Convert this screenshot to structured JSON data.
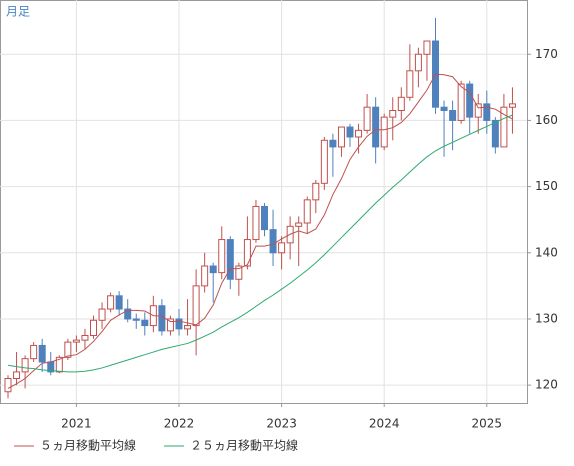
{
  "corner_label": "月足",
  "chart_data": {
    "type": "candlestick",
    "categories": [
      null,
      null,
      null,
      null,
      null,
      null,
      null,
      null,
      "2021",
      null,
      null,
      null,
      null,
      null,
      null,
      null,
      null,
      null,
      null,
      null,
      "2022",
      null,
      null,
      null,
      null,
      null,
      null,
      null,
      null,
      null,
      null,
      null,
      "2023",
      null,
      null,
      null,
      null,
      null,
      null,
      null,
      null,
      null,
      null,
      null,
      "2024",
      null,
      null,
      null,
      null,
      null,
      null,
      null,
      null,
      null,
      null,
      null,
      "2025",
      null,
      null,
      null
    ],
    "open": [
      119.0,
      121.0,
      122.0,
      124.0,
      126.0,
      123.5,
      122.0,
      124.2,
      126.5,
      126.8,
      127.5,
      129.8,
      131.5,
      133.5,
      131.5,
      130.0,
      129.8,
      129.0,
      132.0,
      128.2,
      130.0,
      128.5,
      129.0,
      135.0,
      138.0,
      137.0,
      142.0,
      136.0,
      138.0,
      142.0,
      147.0,
      143.5,
      140.0,
      141.5,
      144.0,
      144.5,
      148.0,
      150.5,
      157.0,
      156.0,
      159.0,
      157.5,
      158.5,
      162.0,
      156.0,
      160.5,
      161.5,
      163.5,
      167.5,
      170.0,
      172.0,
      162.0,
      161.5,
      160.0,
      165.5,
      160.5,
      162.5,
      160.0,
      156.0,
      162.0
    ],
    "high": [
      121.5,
      125.0,
      124.5,
      126.5,
      127.0,
      125.0,
      124.5,
      127.0,
      127.5,
      128.5,
      130.5,
      132.5,
      134.0,
      134.2,
      133.0,
      130.8,
      131.0,
      133.5,
      133.0,
      130.5,
      131.5,
      133.0,
      137.5,
      140.0,
      138.5,
      144.0,
      142.5,
      138.5,
      145.5,
      148.0,
      147.5,
      146.5,
      142.5,
      145.5,
      145.5,
      148.5,
      151.0,
      157.5,
      158.0,
      159.0,
      159.5,
      159.5,
      164.0,
      163.5,
      161.0,
      163.5,
      165.0,
      171.5,
      171.0,
      172.0,
      175.5,
      163.0,
      163.0,
      166.0,
      166.0,
      164.0,
      164.5,
      160.5,
      164.0,
      165.0
    ],
    "low": [
      118.0,
      120.0,
      119.5,
      123.5,
      122.0,
      121.5,
      121.8,
      123.8,
      125.0,
      125.5,
      127.0,
      128.5,
      131.0,
      130.5,
      129.5,
      128.5,
      127.5,
      128.0,
      127.5,
      127.5,
      127.5,
      127.5,
      124.5,
      134.0,
      132.5,
      136.0,
      134.5,
      133.5,
      137.5,
      141.5,
      142.5,
      138.0,
      137.5,
      139.0,
      138.0,
      143.0,
      146.0,
      149.5,
      151.5,
      154.5,
      156.0,
      155.0,
      158.0,
      153.5,
      155.5,
      157.0,
      160.0,
      163.0,
      165.0,
      166.0,
      161.0,
      154.5,
      155.5,
      159.5,
      158.0,
      158.0,
      158.0,
      155.0,
      156.0,
      158.0
    ],
    "close": [
      121.0,
      122.0,
      124.0,
      126.0,
      123.5,
      122.0,
      124.2,
      126.5,
      126.8,
      127.5,
      129.8,
      131.5,
      133.5,
      131.5,
      130.0,
      129.8,
      129.0,
      132.0,
      128.2,
      130.0,
      128.5,
      129.0,
      135.0,
      138.0,
      137.0,
      142.0,
      136.0,
      138.0,
      142.0,
      147.0,
      143.5,
      140.0,
      141.5,
      144.0,
      144.5,
      148.0,
      150.5,
      157.0,
      156.0,
      159.0,
      157.5,
      158.5,
      162.0,
      156.0,
      160.5,
      161.5,
      163.5,
      167.5,
      170.0,
      172.0,
      162.0,
      161.5,
      160.0,
      165.5,
      160.5,
      162.5,
      160.0,
      156.0,
      162.0,
      162.5
    ],
    "up_color": "#c0504d",
    "down_color": "#4f81bd",
    "series": [
      {
        "name": "５ヵ月移動平均線",
        "color": "#c0504d",
        "values": [
          119.5,
          120.2,
          121.0,
          122.2,
          123.3,
          123.5,
          123.9,
          124.4,
          124.6,
          125.4,
          126.6,
          128.1,
          129.8,
          130.6,
          131.3,
          131.3,
          131.2,
          130.5,
          130.4,
          129.6,
          129.7,
          129.4,
          129.1,
          130.1,
          132.1,
          135.4,
          137.6,
          137.6,
          138.2,
          141.0,
          141.0,
          141.3,
          142.1,
          142.8,
          143.3,
          142.9,
          143.6,
          145.7,
          148.8,
          151.2,
          154.1,
          156.0,
          157.6,
          158.6,
          158.6,
          158.9,
          159.7,
          161.0,
          162.8,
          164.6,
          167.0,
          166.9,
          166.6,
          165.1,
          164.2,
          161.9,
          162.0,
          161.7,
          160.9,
          160.2
        ]
      },
      {
        "name": "２５ヵ月移動平均線",
        "color": "#2eaa6e",
        "values": [
          123.0,
          122.8,
          122.6,
          122.5,
          122.3,
          122.2,
          122.1,
          122.0,
          122.0,
          122.1,
          122.3,
          122.6,
          123.0,
          123.4,
          123.8,
          124.2,
          124.6,
          125.0,
          125.4,
          125.7,
          126.0,
          126.3,
          126.8,
          127.4,
          128.0,
          128.8,
          129.5,
          130.2,
          131.0,
          131.9,
          132.8,
          133.6,
          134.5,
          135.4,
          136.4,
          137.4,
          138.5,
          139.7,
          141.0,
          142.3,
          143.6,
          144.9,
          146.2,
          147.5,
          148.7,
          149.9,
          151.0,
          152.2,
          153.4,
          154.5,
          155.4,
          156.1,
          156.7,
          157.3,
          157.9,
          158.5,
          159.1,
          159.7,
          160.3,
          160.8
        ]
      }
    ],
    "ylim": [
      117.3,
      178.2
    ],
    "yticks": [
      120,
      130,
      140,
      150,
      160,
      170
    ],
    "grid": true
  }
}
